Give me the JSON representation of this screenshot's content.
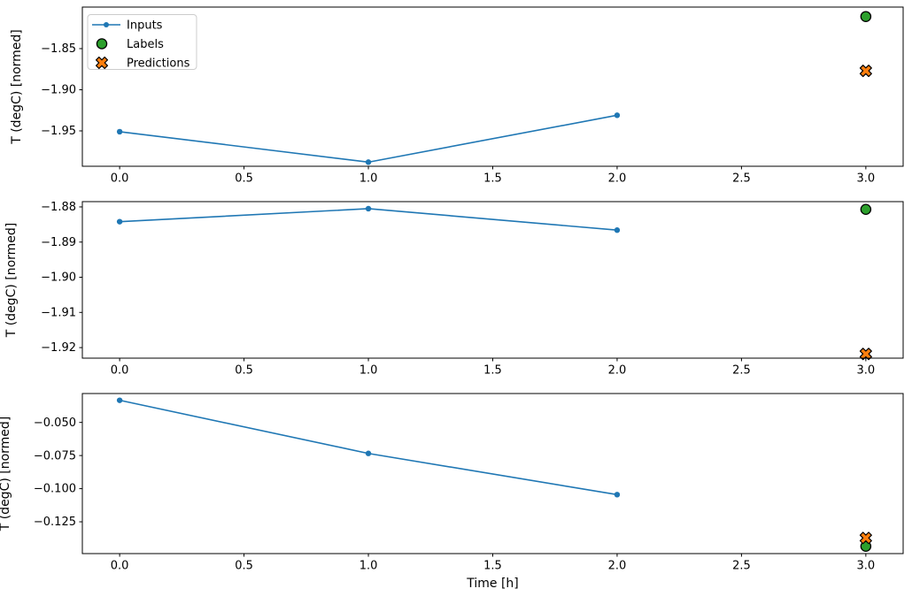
{
  "figure": {
    "kind": "matplotlib-style line chart, 3 stacked subplots",
    "background": "#ffffff"
  },
  "chart_data": {
    "type": "line",
    "xlabel": "Time [h]",
    "xlim": [
      -0.15,
      3.15
    ],
    "x_ticks": [
      0,
      0.5,
      1,
      1.5,
      2,
      2.5,
      3
    ],
    "x_tick_labels": [
      "0.0",
      "0.5",
      "1.0",
      "1.5",
      "2.0",
      "2.5",
      "3.0"
    ],
    "grid": false,
    "colors": {
      "inputs_line": "#1f77b4",
      "labels_marker": "#2ca02c",
      "predictions_marker": "#ff7f0e",
      "marker_edge": "#000000",
      "spine": "#000000",
      "legend_border": "#cccccc",
      "legend_background": "#ffffff"
    },
    "legend": {
      "position": "upper left",
      "entries": [
        {
          "label": "Inputs",
          "marker": "line-dot",
          "color": "#1f77b4"
        },
        {
          "label": "Labels",
          "marker": "circle",
          "color": "#2ca02c"
        },
        {
          "label": "Predictions",
          "marker": "x",
          "color": "#ff7f0e"
        }
      ]
    },
    "subplots": [
      {
        "ylabel": "T (degC) [normed]",
        "ylim": [
          -1.993,
          -1.7995
        ],
        "y_ticks": [
          -1.85,
          -1.9,
          -1.95
        ],
        "y_tick_labels": [
          "−1.85",
          "−1.90",
          "−1.95"
        ],
        "series": {
          "inputs": {
            "x": [
              0,
              1,
              2
            ],
            "y": [
              -1.951,
              -1.988,
              -1.931
            ]
          },
          "labels": {
            "x": [
              3
            ],
            "y": [
              -1.811
            ]
          },
          "predictions": {
            "x": [
              3
            ],
            "y": [
              -1.877
            ]
          }
        }
      },
      {
        "ylabel": "T (degC) [normed]",
        "ylim": [
          -1.923,
          -1.8785
        ],
        "y_ticks": [
          -1.88,
          -1.89,
          -1.9,
          -1.91,
          -1.92
        ],
        "y_tick_labels": [
          "−1.88",
          "−1.89",
          "−1.90",
          "−1.91",
          "−1.92"
        ],
        "series": {
          "inputs": {
            "x": [
              0,
              1,
              2
            ],
            "y": [
              -1.8842,
              -1.8805,
              -1.8866
            ]
          },
          "labels": {
            "x": [
              3
            ],
            "y": [
              -1.8807
            ]
          },
          "predictions": {
            "x": [
              3
            ],
            "y": [
              -1.9218
            ]
          }
        }
      },
      {
        "ylabel": "T (degC) [normed]",
        "ylim": [
          -0.149,
          -0.0282
        ],
        "y_ticks": [
          -0.05,
          -0.075,
          -0.1,
          -0.125
        ],
        "y_tick_labels": [
          "−0.050",
          "−0.075",
          "−0.100",
          "−0.125"
        ],
        "series": {
          "inputs": {
            "x": [
              0,
              1,
              2
            ],
            "y": [
              -0.0333,
              -0.0734,
              -0.1045
            ]
          },
          "labels": {
            "x": [
              3
            ],
            "y": [
              -0.1435
            ]
          },
          "predictions": {
            "x": [
              3
            ],
            "y": [
              -0.1372
            ]
          }
        }
      }
    ]
  }
}
